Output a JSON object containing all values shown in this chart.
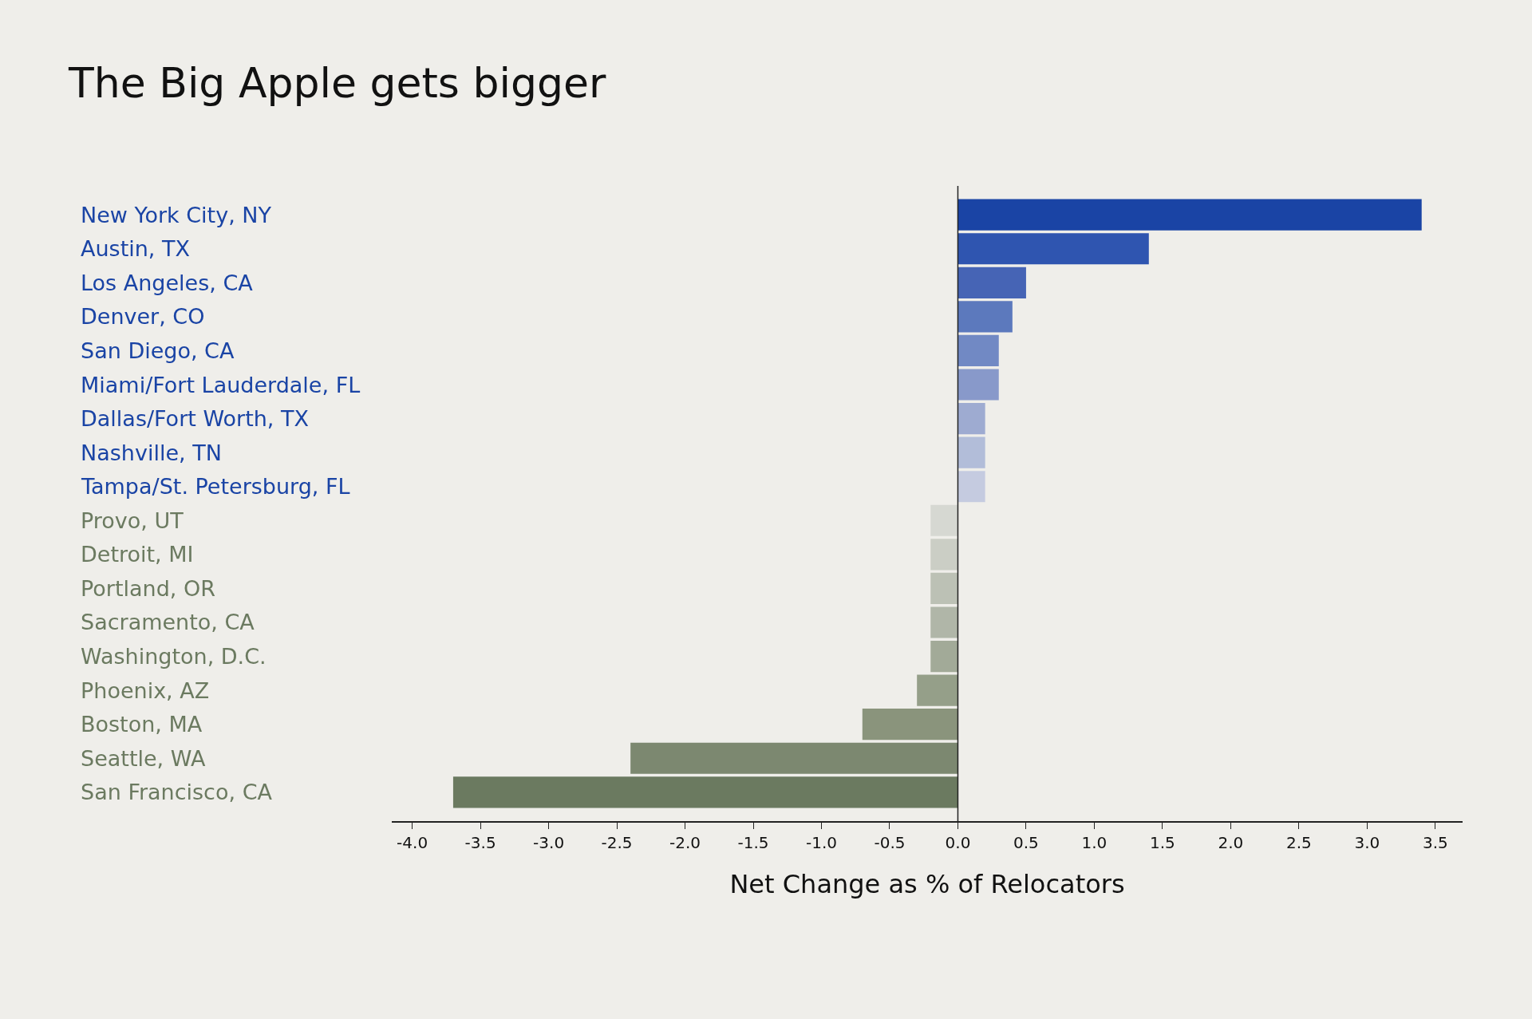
{
  "chart_data": {
    "type": "bar",
    "orientation": "horizontal",
    "title": "The Big Apple gets bigger",
    "xlabel": "Net Change as % of Relocators",
    "categories": [
      "New York City, NY",
      "Austin, TX",
      "Los Angeles, CA",
      "Denver, CO",
      "San Diego, CA",
      "Miami/Fort Lauderdale, FL",
      "Dallas/Fort Worth, TX",
      "Nashville, TN",
      "Tampa/St. Petersburg, FL",
      "Provo, UT",
      "Detroit, MI",
      "Portland, OR",
      "Sacramento, CA",
      "Washington, D.C.",
      "Phoenix, AZ",
      "Boston, MA",
      "Seattle, WA",
      "San Francisco, CA"
    ],
    "values": [
      3.4,
      1.4,
      0.5,
      0.4,
      0.3,
      0.3,
      0.2,
      0.2,
      0.2,
      -0.2,
      -0.2,
      -0.2,
      -0.2,
      -0.2,
      -0.3,
      -0.7,
      -2.4,
      -3.7
    ],
    "colors": [
      "#1a44a5",
      "#2f55b0",
      "#4664b5",
      "#5c79bd",
      "#7189c4",
      "#8899ca",
      "#9eabd1",
      "#b2bdd9",
      "#c5cbe0",
      "#d6d8d2",
      "#cbcec5",
      "#bcc1b5",
      "#b0b6a8",
      "#a2aa98",
      "#959f89",
      "#8a947c",
      "#7c8870",
      "#6b7a60"
    ],
    "xlim": [
      -4.15,
      3.7
    ],
    "xticks": [
      {
        "value": -4,
        "label": "-4.0"
      },
      {
        "value": -3.5,
        "label": "-3.5"
      },
      {
        "value": -3,
        "label": "-3.0"
      },
      {
        "value": -2.5,
        "label": "-2.5"
      },
      {
        "value": -2,
        "label": "-2.0"
      },
      {
        "value": -1.5,
        "label": "-1.5"
      },
      {
        "value": -1,
        "label": "-1.0"
      },
      {
        "value": -0.5,
        "label": "-0.5"
      },
      {
        "value": 0,
        "label": "0.0"
      },
      {
        "value": 0.5,
        "label": "0.5"
      },
      {
        "value": 1,
        "label": "1.0"
      },
      {
        "value": 1.5,
        "label": "1.5"
      },
      {
        "value": 2,
        "label": "2.0"
      },
      {
        "value": 2.5,
        "label": "2.5"
      },
      {
        "value": 3,
        "label": "3.0"
      },
      {
        "value": 3.5,
        "label": "3.5"
      }
    ],
    "ref_lines": [
      {
        "axis": "x",
        "value": 0,
        "color": "#222222"
      }
    ],
    "grid": false
  }
}
